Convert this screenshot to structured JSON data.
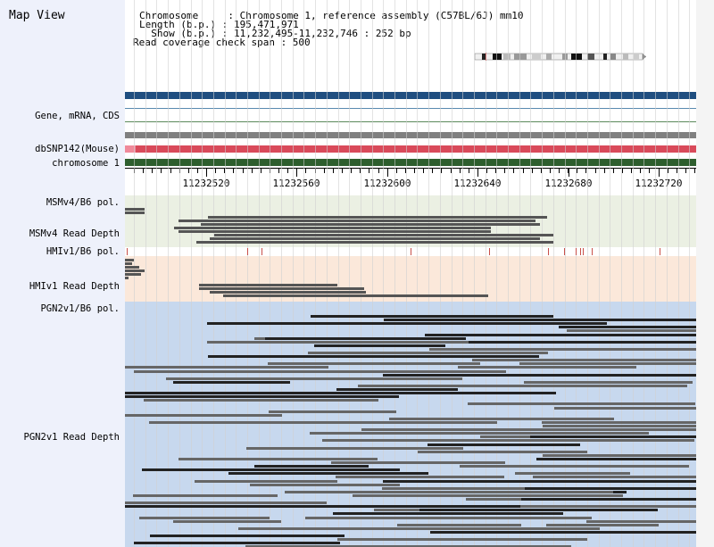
{
  "app": {
    "title": "Map View"
  },
  "info": {
    "chromosome": "Chromosome     : Chromosome 1, reference assembly (C57BL/6J) mm10",
    "length": "Length (b.p.) : 195,471,971",
    "show": "  Show (b.p.) : 11,232,495-11,232,746 : 252 bp",
    "span": "Read coverage check span : 500"
  },
  "labels": {
    "gene": "Gene, mRNA, CDS",
    "dbsnp": "dbSNP142(Mouse)",
    "chromosome": "chromosome 1",
    "msm_pol": "MSMv4/B6 pol.",
    "msm_depth": "MSMv4 Read Depth",
    "hmi_pol": "HMIv1/B6 pol.",
    "hmi_depth": "HMIv1 Read Depth",
    "pgn_pol": "PGN2v1/B6 pol.",
    "pgn_depth": "PGN2v1 Read Depth"
  },
  "axis": {
    "ticks": [
      "11232520",
      "11232560",
      "11232600",
      "11232640",
      "11232680",
      "11232720"
    ]
  },
  "colors": {
    "gene_bar": "#1f4e80",
    "snp_bar": "#d94a5a",
    "chrom_bar": "#2e5e2e",
    "msm_bg": "#ebf0e3",
    "hmi_bg": "#fbe8da",
    "pgn_bg": "#c7d8ee",
    "read_dark": "#3a3a3a",
    "read_mid": "#666666",
    "snp_mark": "#c8504a"
  }
}
